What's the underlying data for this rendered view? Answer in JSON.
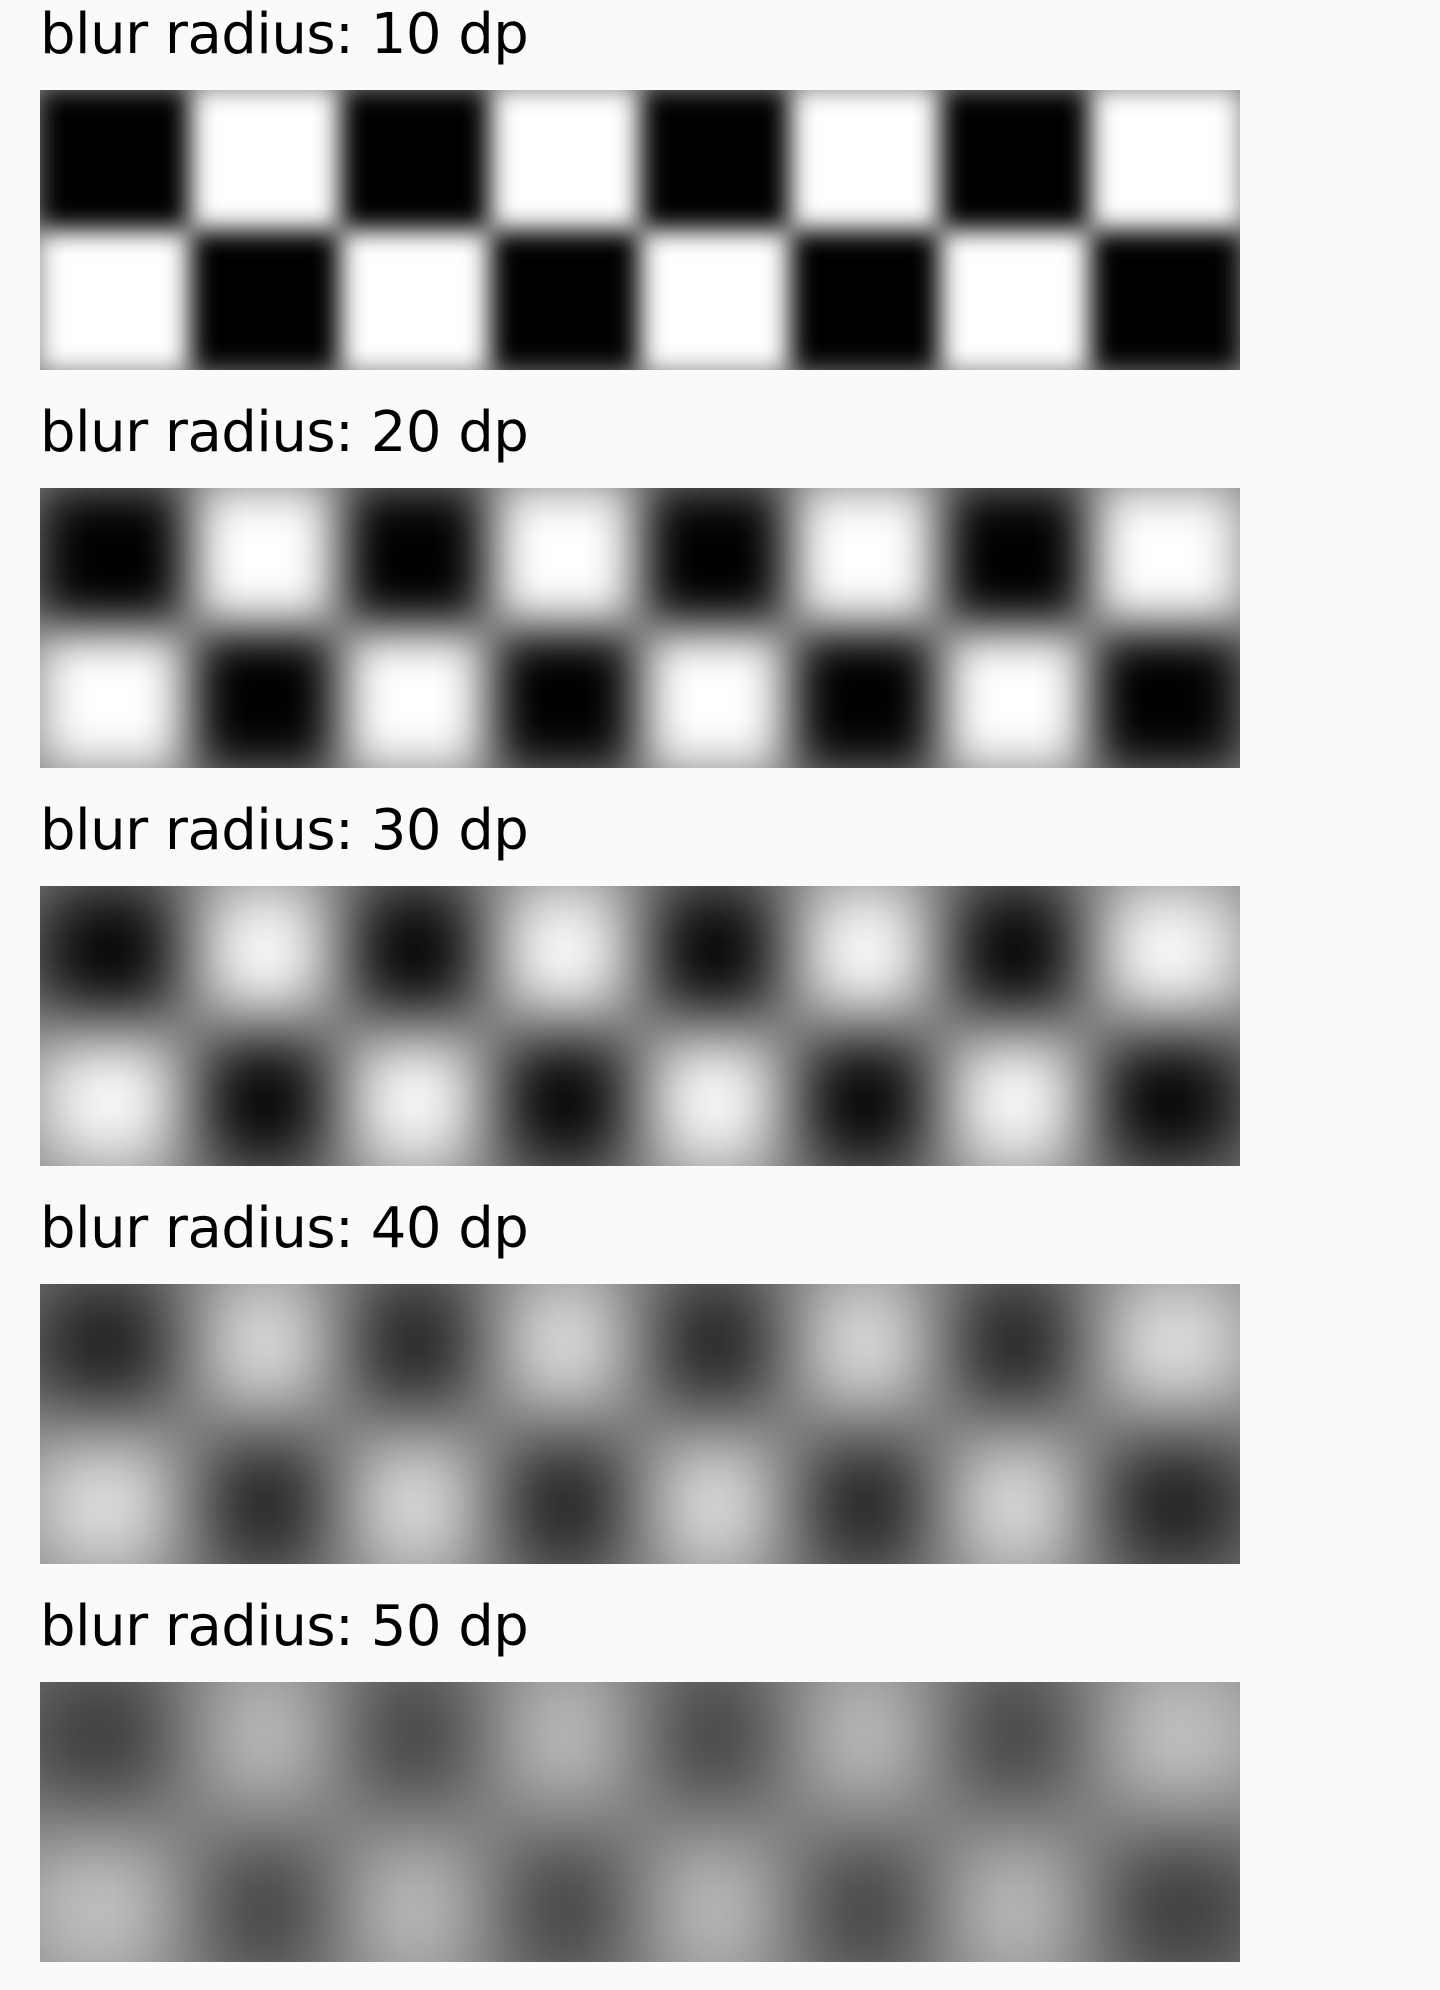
{
  "colors": {
    "background": "#fafafa",
    "dark": "#000000",
    "light": "#ffffff",
    "text": "#000000"
  },
  "board": {
    "columns": 8,
    "rows": 2
  },
  "samples": [
    {
      "label": "blur radius: 10 dp",
      "blur_dp": 10
    },
    {
      "label": "blur radius: 20 dp",
      "blur_dp": 20
    },
    {
      "label": "blur radius: 30 dp",
      "blur_dp": 30
    },
    {
      "label": "blur radius: 40 dp",
      "blur_dp": 40
    },
    {
      "label": "blur radius: 50 dp",
      "blur_dp": 50
    }
  ]
}
